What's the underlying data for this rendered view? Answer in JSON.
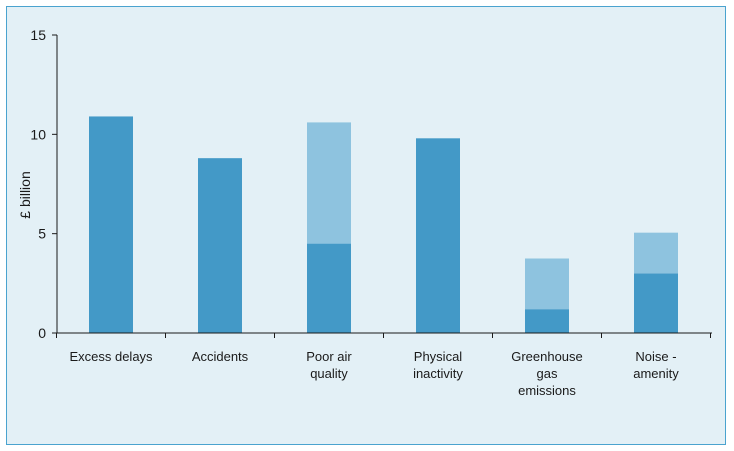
{
  "chart_data": {
    "type": "bar",
    "stacked": true,
    "title": "",
    "xlabel": "",
    "ylabel": "£ billion",
    "ylim": [
      0,
      15
    ],
    "yticks": [
      0,
      5,
      10,
      15
    ],
    "grid": false,
    "categories": [
      [
        "Excess delays"
      ],
      [
        "Accidents"
      ],
      [
        "Poor air",
        "quality"
      ],
      [
        "Physical",
        "inactivity"
      ],
      [
        "Greenhouse",
        "gas",
        "emissions"
      ],
      [
        "Noise -",
        "amenity"
      ]
    ],
    "series": [
      {
        "color": "#4399c7",
        "values": [
          10.9,
          8.8,
          4.5,
          9.8,
          1.2,
          3.0
        ]
      },
      {
        "color": "#8ec3df",
        "values": [
          0,
          0,
          6.1,
          0,
          2.55,
          2.05
        ]
      }
    ]
  }
}
